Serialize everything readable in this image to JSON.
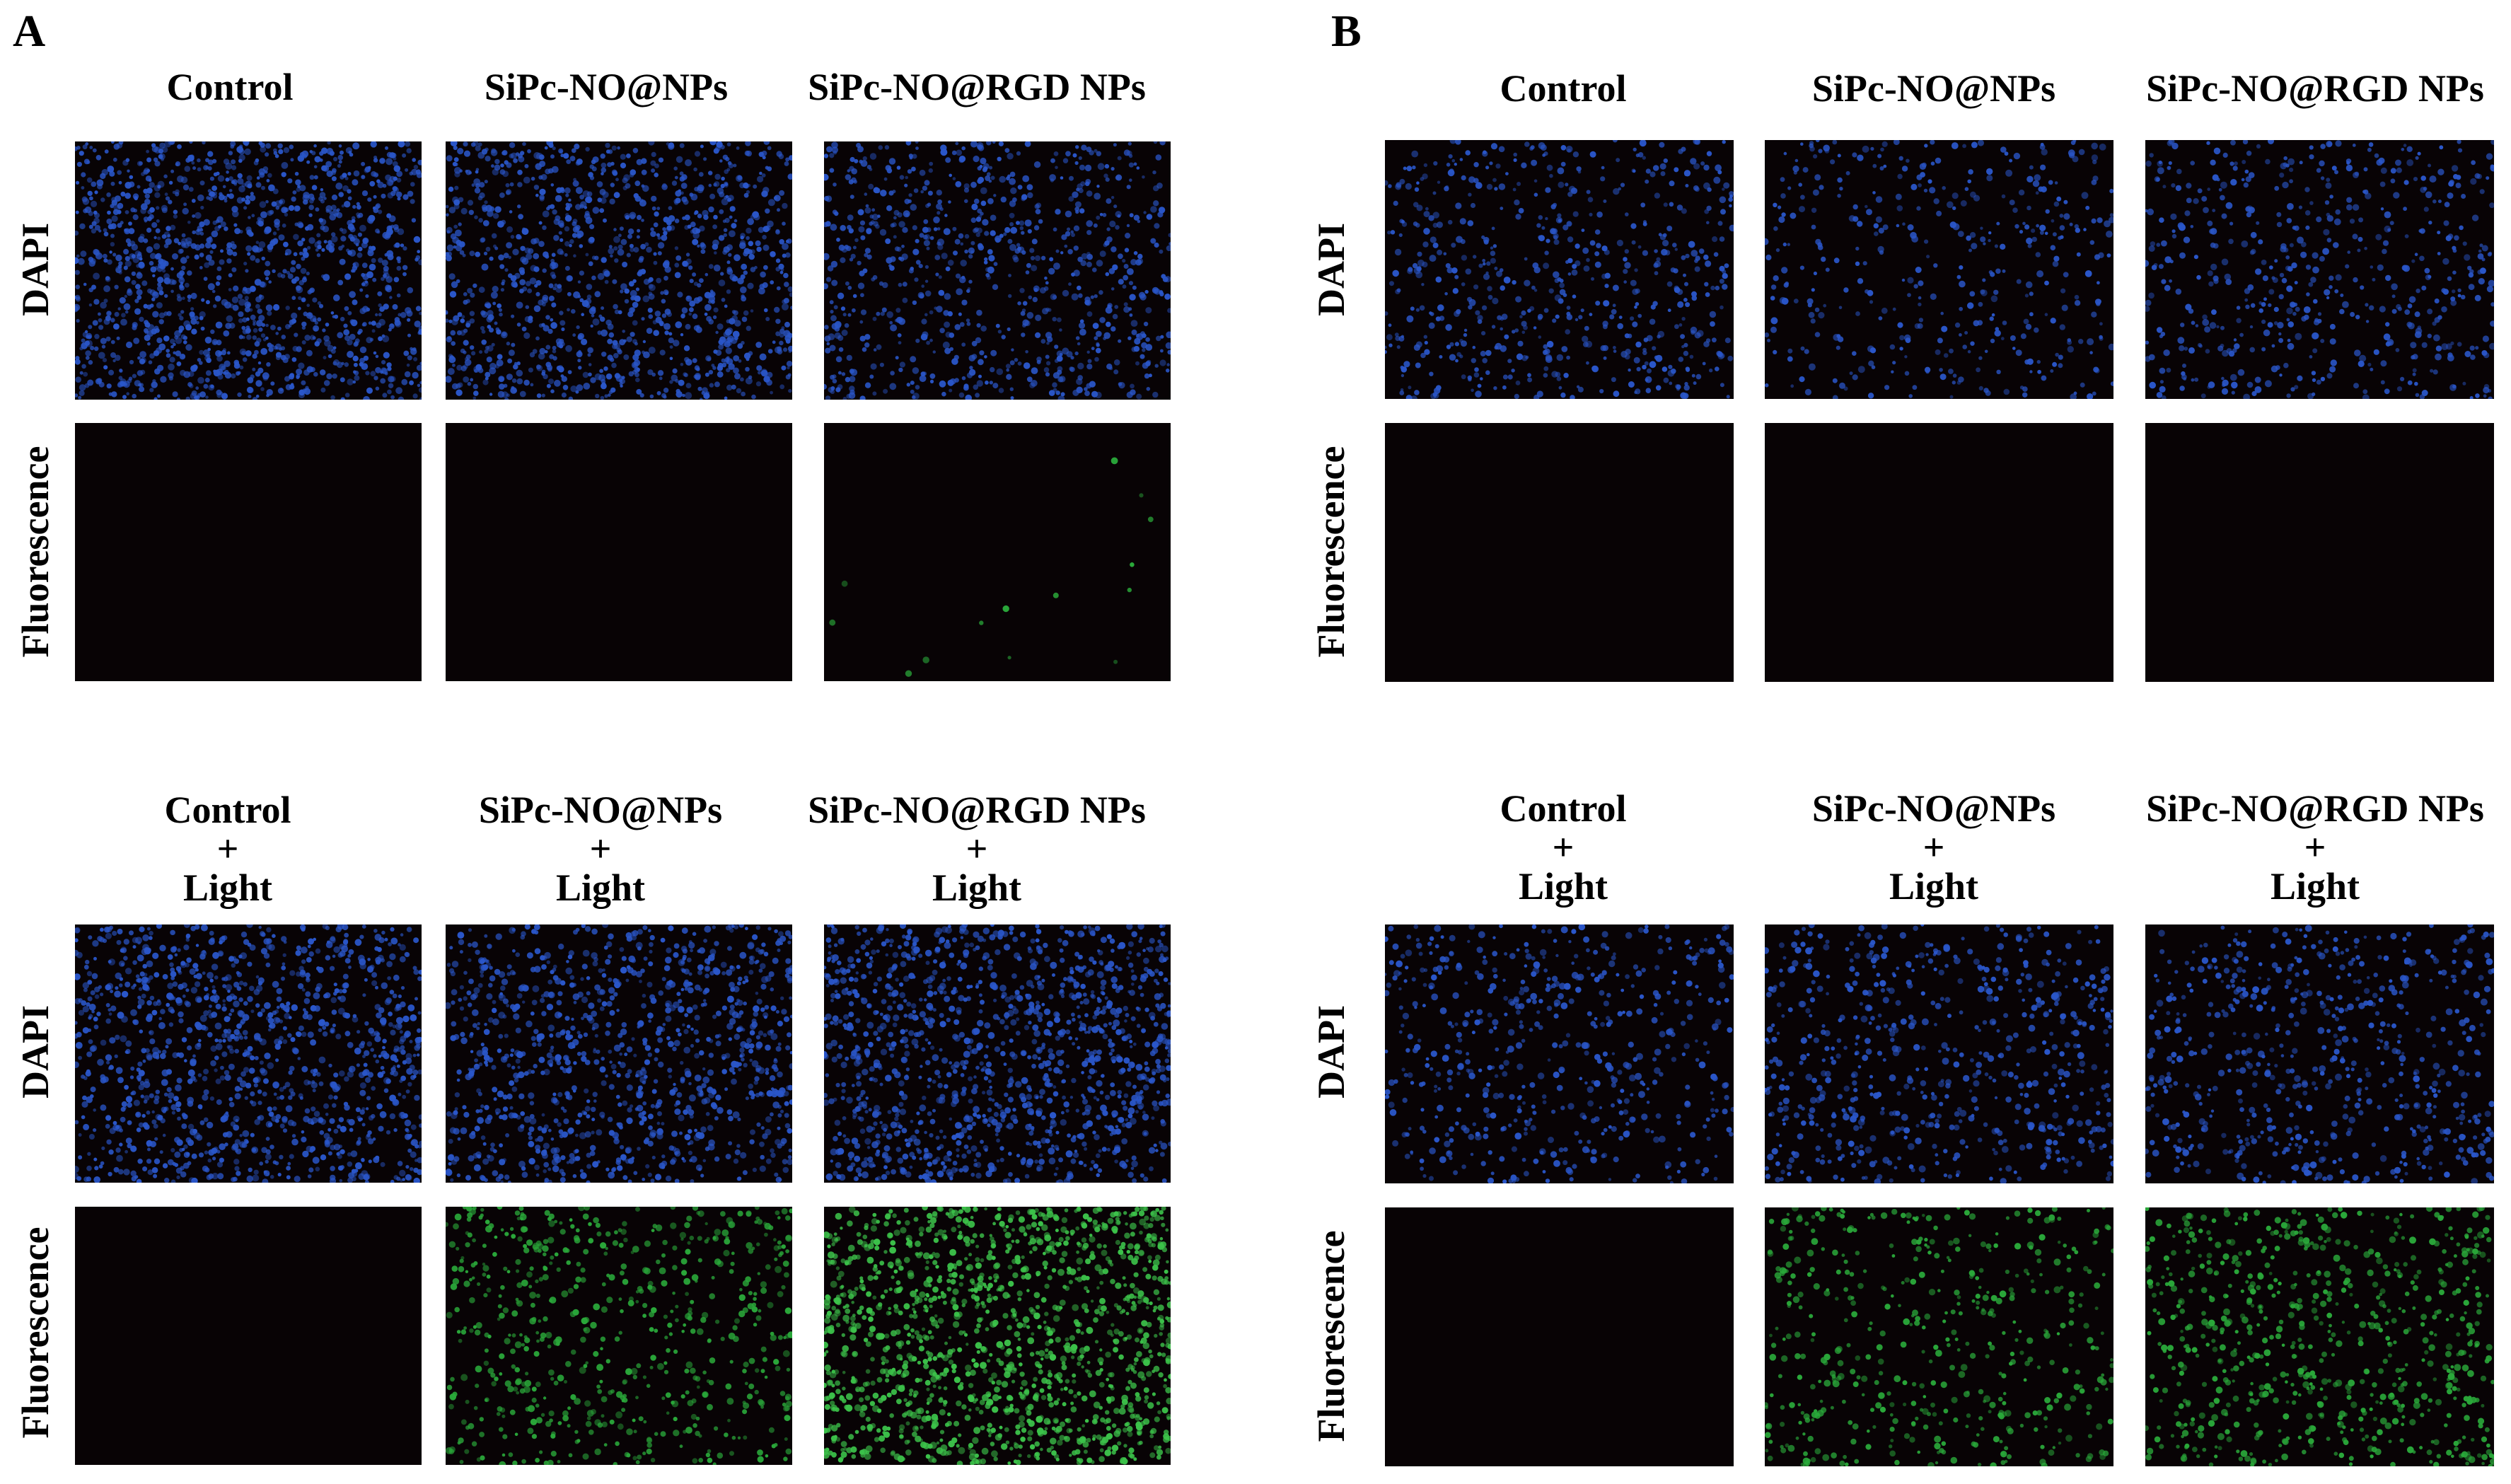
{
  "panels": [
    {
      "letter": "A",
      "top_headers": [
        [
          "Control"
        ],
        [
          "SiPc-NO@NPs"
        ],
        [
          "SiPc-NO@RGD NPs"
        ]
      ],
      "bottom_headers": [
        [
          "Control",
          "+",
          "Light"
        ],
        [
          "SiPc-NO@NPs",
          "+",
          "Light"
        ],
        [
          "SiPc-NO@RGD NPs",
          "+",
          "Light"
        ]
      ],
      "row_labels": [
        "DAPI",
        "Fluorescence",
        "DAPI",
        "Fluorescence"
      ],
      "images": [
        {
          "channel": "DAPI",
          "color": "#2a56c9",
          "density": 1.0
        },
        {
          "channel": "DAPI",
          "color": "#2a56c9",
          "density": 0.85
        },
        {
          "channel": "DAPI",
          "color": "#2a56c9",
          "density": 0.6
        },
        {
          "channel": "Fluorescence",
          "color": "#2aa83a",
          "density": 0.0
        },
        {
          "channel": "Fluorescence",
          "color": "#2aa83a",
          "density": 0.0
        },
        {
          "channel": "Fluorescence",
          "color": "#2aa83a",
          "density": 0.01
        },
        {
          "channel": "DAPI",
          "color": "#2a56c9",
          "density": 0.85
        },
        {
          "channel": "DAPI",
          "color": "#2a56c9",
          "density": 0.75
        },
        {
          "channel": "DAPI",
          "color": "#2a56c9",
          "density": 0.9
        },
        {
          "channel": "Fluorescence",
          "color": "#2aa83a",
          "density": 0.0
        },
        {
          "channel": "Fluorescence",
          "color": "#2aa83a",
          "density": 0.45
        },
        {
          "channel": "Fluorescence",
          "color": "#3cc24a",
          "density": 1.0
        }
      ]
    },
    {
      "letter": "B",
      "top_headers": [
        [
          "Control"
        ],
        [
          "SiPc-NO@NPs"
        ],
        [
          "SiPc-NO@RGD NPs"
        ]
      ],
      "bottom_headers": [
        [
          "Control",
          "+",
          "Light"
        ],
        [
          "SiPc-NO@NPs",
          "+",
          "Light"
        ],
        [
          "SiPc-NO@RGD NPs",
          "+",
          "Light"
        ]
      ],
      "row_labels": [
        "DAPI",
        "Fluorescence",
        "DAPI",
        "Fluorescence"
      ],
      "images": [
        {
          "channel": "DAPI",
          "color": "#2a56c9",
          "density": 0.45
        },
        {
          "channel": "DAPI",
          "color": "#2a56c9",
          "density": 0.3
        },
        {
          "channel": "DAPI",
          "color": "#2a56c9",
          "density": 0.4
        },
        {
          "channel": "Fluorescence",
          "color": "#2aa83a",
          "density": 0.0
        },
        {
          "channel": "Fluorescence",
          "color": "#2aa83a",
          "density": 0.0
        },
        {
          "channel": "Fluorescence",
          "color": "#2aa83a",
          "density": 0.0
        },
        {
          "channel": "DAPI",
          "color": "#2a56c9",
          "density": 0.4
        },
        {
          "channel": "DAPI",
          "color": "#2a56c9",
          "density": 0.45
        },
        {
          "channel": "DAPI",
          "color": "#2a56c9",
          "density": 0.45
        },
        {
          "channel": "Fluorescence",
          "color": "#2aa83a",
          "density": 0.0
        },
        {
          "channel": "Fluorescence",
          "color": "#2aa83a",
          "density": 0.35
        },
        {
          "channel": "Fluorescence",
          "color": "#2aa83a",
          "density": 0.5
        }
      ]
    }
  ]
}
